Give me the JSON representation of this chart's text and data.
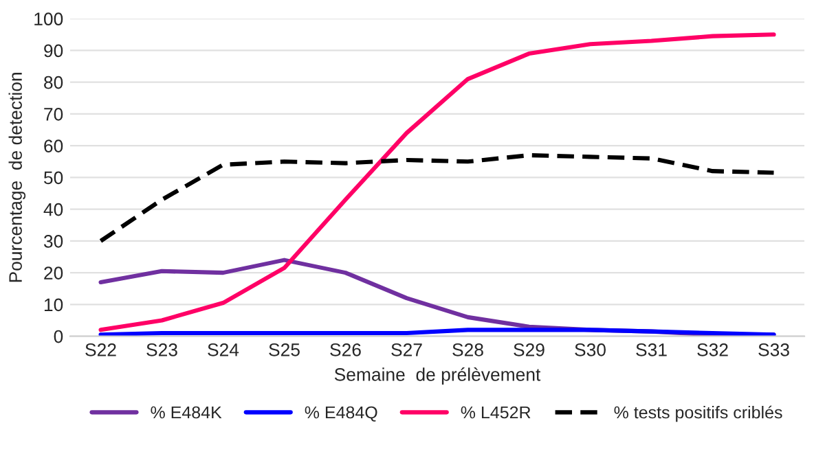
{
  "chart_data": {
    "type": "line",
    "xlabel": "Semaine  de prélèvement",
    "ylabel": "Pourcentage  de detection",
    "categories": [
      "S22",
      "S23",
      "S24",
      "S25",
      "S26",
      "S27",
      "S28",
      "S29",
      "S30",
      "S31",
      "S32",
      "S33"
    ],
    "series": [
      {
        "name": "% E484K",
        "color": "#7030a0",
        "values": [
          17,
          20.5,
          20,
          24,
          20,
          12,
          6,
          3,
          2,
          1.5,
          0.5,
          0.5
        ]
      },
      {
        "name": "% E484Q",
        "color": "#0000ff",
        "values": [
          0.5,
          1,
          1,
          1,
          1,
          1,
          2,
          2,
          2,
          1.5,
          1,
          0.5
        ]
      },
      {
        "name": "% L452R",
        "color": "#ff0066",
        "values": [
          2,
          5,
          10.5,
          21.5,
          43,
          64,
          81,
          89,
          92,
          93,
          94.5,
          95
        ]
      },
      {
        "name": "% tests positifs criblés",
        "color": "#000000",
        "line_style": "dashed",
        "values": [
          30,
          43,
          54,
          55,
          54.5,
          55.5,
          55,
          57,
          56.5,
          56,
          52,
          51.5
        ]
      }
    ],
    "ylim": [
      0,
      100
    ],
    "yticks": [
      0,
      10,
      20,
      30,
      40,
      50,
      60,
      70,
      80,
      90,
      100
    ],
    "grid": "y",
    "legend": "bottom"
  }
}
